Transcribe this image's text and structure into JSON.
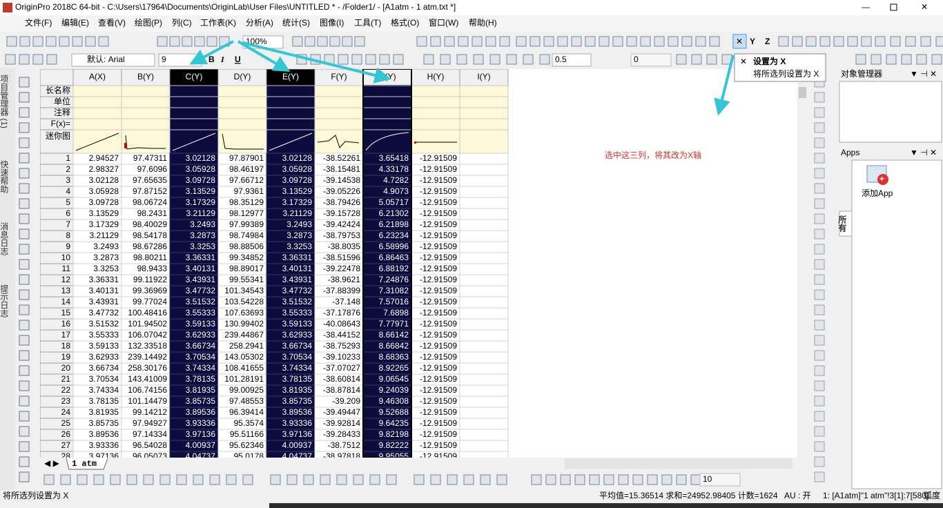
{
  "title": "OriginPro 2018C 64-bit - C:\\Users\\17964\\Documents\\OriginLab\\User Files\\UNTITLED * - /Folder1/ - [A1atm - 1 atm.txt *]",
  "menu": [
    "文件(F)",
    "编辑(E)",
    "查看(V)",
    "绘图(P)",
    "列(C)",
    "工作表(K)",
    "分析(A)",
    "统计(S)",
    "图像(I)",
    "工具(T)",
    "格式(O)",
    "窗口(W)",
    "帮助(H)"
  ],
  "toolbar": {
    "zoom": "100%",
    "font": "默认: Arial",
    "font_size": "9",
    "line_width": "0.5",
    "field": "0",
    "bottom_size": "10"
  },
  "tooltip": {
    "title": "设置为 X",
    "text": "将所选列设置为 X"
  },
  "side_tabs": [
    "项目管理器 (1)",
    "快速帮助",
    "消息日志",
    "提示日志"
  ],
  "worksheet": {
    "columns": [
      "A(X)",
      "B(Y)",
      "C(Y)",
      "D(Y)",
      "E(Y)",
      "F(Y)",
      "G(Y)",
      "H(Y)",
      "I(Y)"
    ],
    "row_labels": [
      "长名称",
      "单位",
      "注释",
      "F(x)=",
      "迷你图"
    ],
    "rows": [
      [
        1,
        2.94527,
        97.47311,
        3.02128,
        97.87901,
        3.02128,
        -38.52261,
        3.65418,
        -12.91509
      ],
      [
        2,
        2.98327,
        97.6096,
        3.05928,
        98.46197,
        3.05928,
        -38.15481,
        4.33178,
        -12.91509
      ],
      [
        3,
        3.02128,
        97.65635,
        3.09728,
        97.66712,
        3.09728,
        -39.14538,
        4.7282,
        -12.91509
      ],
      [
        4,
        3.05928,
        97.87152,
        3.13529,
        97.9361,
        3.13529,
        -39.05226,
        4.9073,
        -12.91509
      ],
      [
        5,
        3.09728,
        98.06724,
        3.17329,
        98.35129,
        3.17329,
        -38.79426,
        5.05717,
        -12.91509
      ],
      [
        6,
        3.13529,
        98.2431,
        3.21129,
        98.12977,
        3.21129,
        -39.15728,
        6.21302,
        -12.91509
      ],
      [
        7,
        3.17329,
        98.40029,
        3.2493,
        97.99389,
        3.2493,
        -39.42424,
        6.21898,
        -12.91509
      ],
      [
        8,
        3.21129,
        98.54178,
        3.2873,
        98.74984,
        3.2873,
        -38.79753,
        6.23234,
        -12.91509
      ],
      [
        9,
        3.2493,
        98.67286,
        3.3253,
        98.88506,
        3.3253,
        -38.8035,
        6.58996,
        -12.91509
      ],
      [
        10,
        3.2873,
        98.80211,
        3.36331,
        99.34852,
        3.36331,
        -38.51596,
        6.86463,
        -12.91509
      ],
      [
        11,
        3.3253,
        98.9433,
        3.40131,
        98.89017,
        3.40131,
        -39.22478,
        6.88192,
        -12.91509
      ],
      [
        12,
        3.36331,
        99.11922,
        3.43931,
        99.55341,
        3.43931,
        -38.9621,
        7.24876,
        -12.91509
      ],
      [
        13,
        3.40131,
        99.36969,
        3.47732,
        101.34543,
        3.47732,
        -37.88399,
        7.31082,
        -12.91509
      ],
      [
        14,
        3.43931,
        99.77024,
        3.51532,
        103.54228,
        3.51532,
        -37.148,
        7.57016,
        -12.91509
      ],
      [
        15,
        3.47732,
        100.48416,
        3.55333,
        107.63693,
        3.55333,
        -37.17876,
        7.6898,
        -12.91509
      ],
      [
        16,
        3.51532,
        101.94502,
        3.59133,
        130.99402,
        3.59133,
        -40.08643,
        7.77971,
        -12.91509
      ],
      [
        17,
        3.55333,
        106.07042,
        3.62933,
        239.44867,
        3.62933,
        -38.44152,
        8.66142,
        -12.91509
      ],
      [
        18,
        3.59133,
        132.33518,
        3.66734,
        258.2941,
        3.66734,
        -38.75293,
        8.66842,
        -12.91509
      ],
      [
        19,
        3.62933,
        239.14492,
        3.70534,
        143.05302,
        3.70534,
        -39.10233,
        8.68363,
        -12.91509
      ],
      [
        20,
        3.66734,
        258.30176,
        3.74334,
        108.41655,
        3.74334,
        -37.07027,
        8.92265,
        -12.91509
      ],
      [
        21,
        3.70534,
        143.41009,
        3.78135,
        101.28191,
        3.78135,
        -38.60814,
        9.06545,
        -12.91509
      ],
      [
        22,
        3.74334,
        106.74156,
        3.81935,
        99.00925,
        3.81935,
        -38.87814,
        9.24039,
        -12.91509
      ],
      [
        23,
        3.78135,
        101.14479,
        3.85735,
        97.48553,
        3.85735,
        -39.209,
        9.46308,
        -12.91509
      ],
      [
        24,
        3.81935,
        99.14212,
        3.89536,
        96.39414,
        3.89536,
        -39.49447,
        9.52688,
        -12.91509
      ],
      [
        25,
        3.85735,
        97.94927,
        3.93336,
        95.3574,
        3.93336,
        -39.92814,
        9.64235,
        -12.91509
      ],
      [
        26,
        3.89536,
        97.14334,
        3.97136,
        95.51166,
        3.97136,
        -39.28433,
        9.82198,
        -12.91509
      ],
      [
        27,
        3.93336,
        96.54028,
        4.00937,
        95.62346,
        4.00937,
        -38.7512,
        9.82222,
        -12.91509
      ],
      [
        28,
        3.97136,
        96.05073,
        4.04737,
        95.0178,
        4.04737,
        -38.97818,
        9.95055,
        -12.91509
      ]
    ],
    "sheet_tab": "1 atm"
  },
  "annotation": "选中这三列，将其改为X轴",
  "panels": {
    "object_manager": "对象管理器",
    "apps": "Apps",
    "add_app": "添加App",
    "all_tab": "所有"
  },
  "status": {
    "hint": "将所选列设置为 X",
    "stats": "平均值=15.36514 求和=24952.98405 计数=1624",
    "au": "AU : 开",
    "range": "1: [A1atm]\"1 atm\"!3[1]:7[580]",
    "angle": "弧度"
  }
}
